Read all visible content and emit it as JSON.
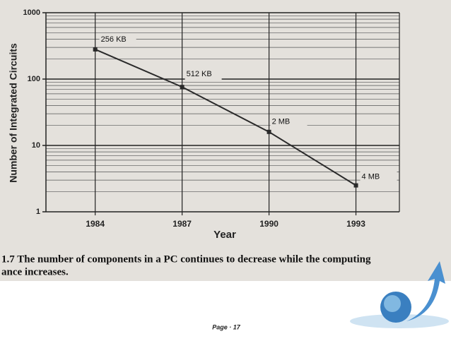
{
  "chart_data": {
    "type": "line",
    "y_label": "Number of Integrated Circuits",
    "x_label": "Year",
    "x": [
      1984,
      1987,
      1990,
      1993
    ],
    "series": [
      {
        "values": [
          280,
          76,
          16,
          2.5
        ],
        "color": "#2a2a2a",
        "point_labels": [
          "256 KB",
          "512 KB",
          "2 MB",
          "4 MB"
        ]
      }
    ],
    "xlim": [
      1982.3,
      1994.5
    ],
    "xticks": [
      1984,
      1987,
      1990,
      1993
    ],
    "ylim": [
      1,
      1000
    ],
    "yticks": [
      1,
      10,
      100,
      1000
    ],
    "log_y": true,
    "grid": true
  },
  "caption": [
    "1.7 The number of components in a PC continues to decrease while the computing",
    "ance increases."
  ],
  "footer": "Page · 17"
}
